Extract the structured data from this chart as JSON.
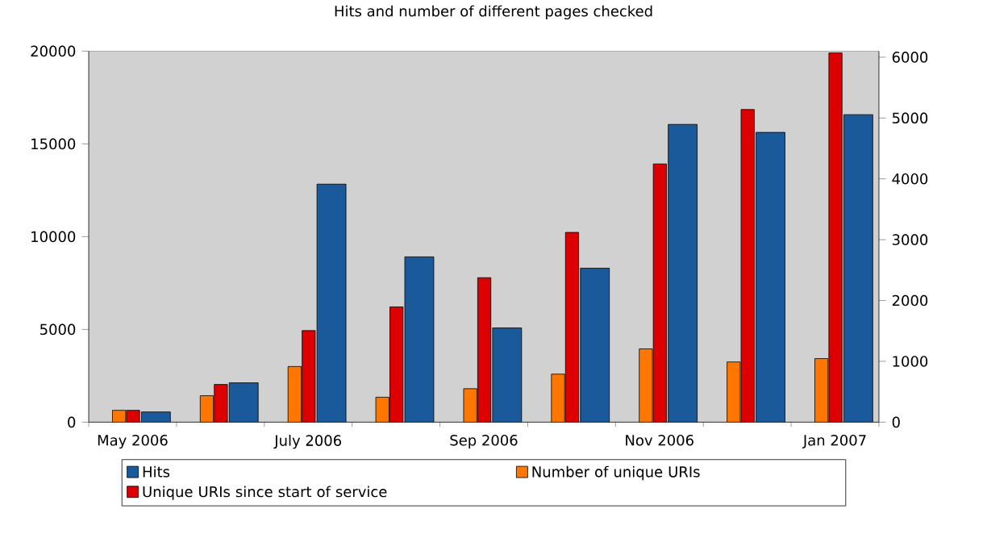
{
  "chart_data": {
    "type": "bar",
    "title": "Hits and number of different pages checked",
    "categories": [
      "May 2006",
      null,
      "July 2006",
      null,
      "Sep 2006",
      null,
      "Nov 2006",
      null,
      "Jan 2007"
    ],
    "series": [
      {
        "name": "Hits",
        "color": "#1a5a9a",
        "values": [
          550,
          2120,
          12830,
          8910,
          5080,
          8300,
          16050,
          15620,
          16575
        ]
      },
      {
        "name": "Number of unique URIs",
        "color": "#ff7700",
        "axis": "y2",
        "values": [
          195,
          435,
          915,
          410,
          550,
          790,
          1205,
          990,
          1045
        ]
      },
      {
        "name": "Unique URIs since start of service",
        "color": "#dd0000",
        "axis": "y2",
        "values": [
          195,
          620,
          1505,
          1895,
          2375,
          3120,
          4245,
          5140,
          6070
        ]
      }
    ],
    "ylim": [
      0,
      20000
    ],
    "yticks": [
      0,
      5000,
      10000,
      15000,
      20000
    ],
    "y2lim": [
      0,
      6100
    ],
    "y2ticks": [
      0,
      1000,
      2000,
      3000,
      4000,
      5000,
      6000
    ],
    "legend": "bottom"
  }
}
